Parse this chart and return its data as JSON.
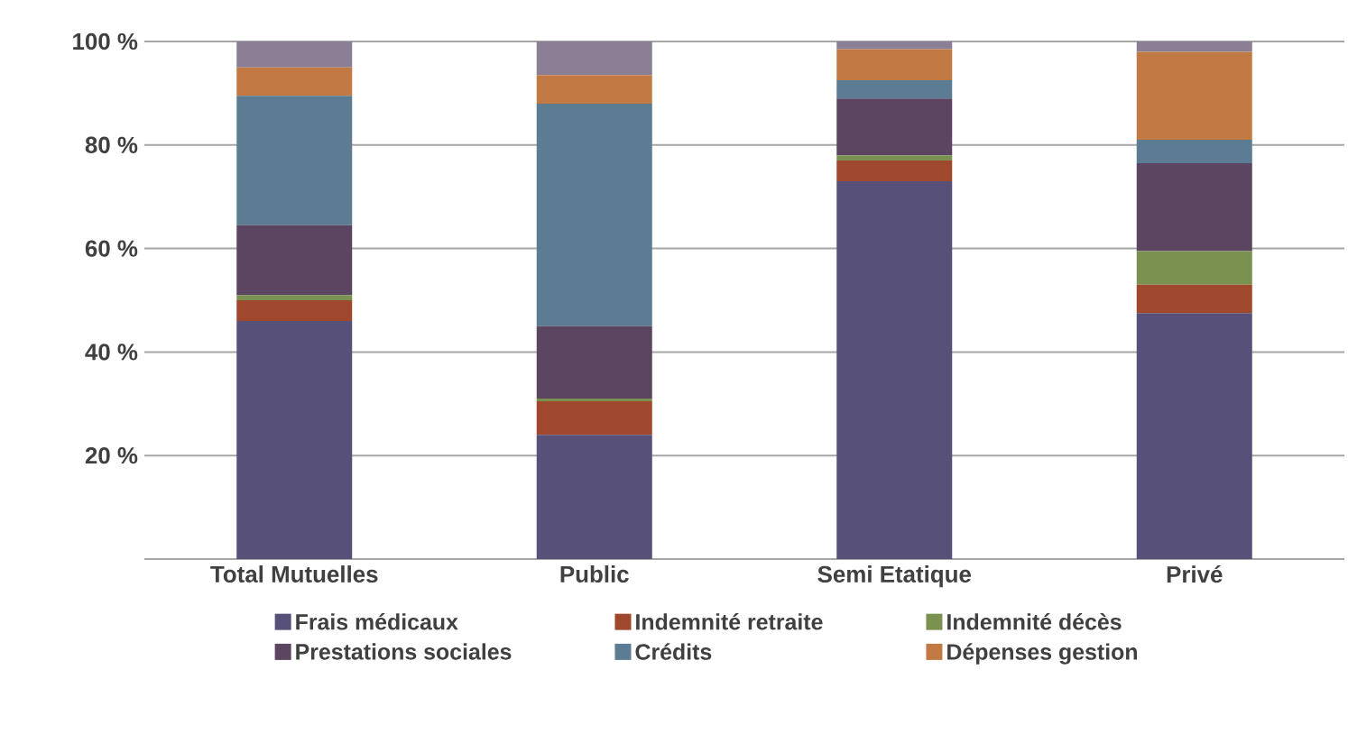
{
  "chart_data": {
    "type": "bar",
    "stacked": true,
    "categories": [
      "Total Mutuelles",
      "Public",
      "Semi Etatique",
      "Privé"
    ],
    "series": [
      {
        "name": "Frais médicaux",
        "color": "#575078",
        "values": [
          46,
          24,
          73,
          47.5
        ]
      },
      {
        "name": "Indemnité retraite",
        "color": "#a0482e",
        "values": [
          4,
          6.5,
          4,
          5.5
        ]
      },
      {
        "name": "Indemnité décès",
        "color": "#7a9150",
        "values": [
          1,
          0.5,
          1,
          6.5
        ]
      },
      {
        "name": "Prestations sociales",
        "color": "#5c4560",
        "values": [
          13.5,
          14,
          11,
          17
        ]
      },
      {
        "name": "Crédits",
        "color": "#5b7c93",
        "values": [
          25,
          43,
          3.5,
          4.5
        ]
      },
      {
        "name": "Dépenses gestion",
        "color": "#c27a45",
        "values": [
          5.5,
          5.5,
          6,
          17
        ]
      },
      {
        "color": "#8a7f95",
        "values": [
          5,
          6.5,
          1.5,
          2
        ]
      }
    ],
    "ylim": [
      0,
      100
    ],
    "yticks": [
      {
        "value": 20,
        "label": "20 %"
      },
      {
        "value": 40,
        "label": "40 %"
      },
      {
        "value": 60,
        "label": "60 %"
      },
      {
        "value": 80,
        "label": "80 %"
      },
      {
        "value": 100,
        "label": "100 %"
      }
    ],
    "grid": "y",
    "legend": "bottom"
  }
}
